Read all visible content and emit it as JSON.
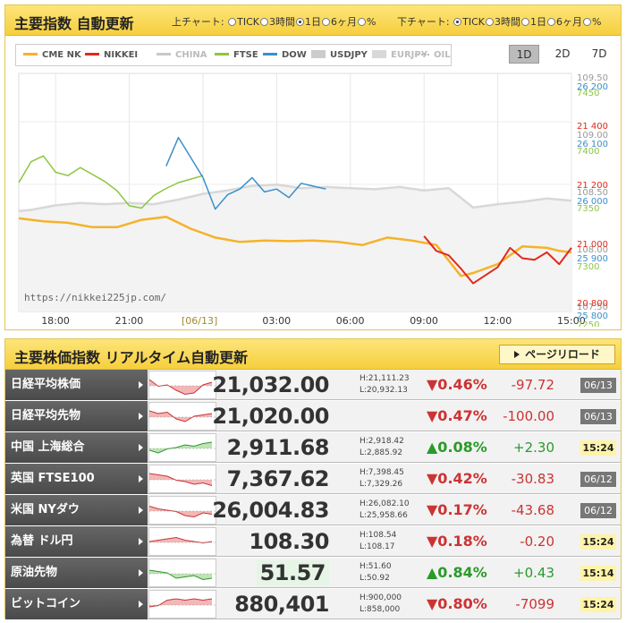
{
  "chart_panel": {
    "title": "主要指数 自動更新",
    "upper_chart": {
      "label": "上チャート:",
      "options": [
        "TICK",
        "3時間",
        "1日",
        "6ヶ月",
        "%"
      ],
      "selected": "1日"
    },
    "lower_chart": {
      "label": "下チャート:",
      "options": [
        "TICK",
        "3時間",
        "1日",
        "6ヶ月",
        "%"
      ],
      "selected": "TICK"
    },
    "legend": [
      {
        "name": "CME NK",
        "color": "#f5b22a",
        "style": "line"
      },
      {
        "name": "NIKKEI",
        "color": "#e02a1a",
        "style": "line"
      },
      {
        "name": "CHINA",
        "color": "#c8c8c8",
        "style": "line"
      },
      {
        "name": "FTSE",
        "color": "#8cc63f",
        "style": "line"
      },
      {
        "name": "DOW",
        "color": "#3a90c8",
        "style": "line"
      },
      {
        "name": "USDJPY",
        "color": "#cccccc",
        "style": "box"
      },
      {
        "name": "EURJPY",
        "color": "#d8d8d8",
        "style": "box"
      },
      {
        "name": "OIL",
        "color": "#bbbbbb",
        "style": "dotted"
      }
    ],
    "range_buttons": [
      "1D",
      "2D",
      "7D"
    ],
    "active_range": "1D",
    "watermark": "https://nikkei225jp.com/",
    "chart_data": {
      "type": "line",
      "x_ticks": [
        "18:00",
        "21:00",
        "[06/13]",
        "03:00",
        "06:00",
        "09:00",
        "12:00",
        "15:00"
      ],
      "y_axis_usdjpy": {
        "ticks": [
          "109.50",
          "109.00",
          "108.50",
          "108.00",
          "107.50"
        ],
        "color": "#999999"
      },
      "y_axis_dow": {
        "ticks": [
          "26 200",
          "26 100",
          "26 000",
          "25 900",
          "25 800"
        ],
        "color": "#3a90c8"
      },
      "y_axis_ftse": {
        "ticks": [
          "7450",
          "7400",
          "7350",
          "7300",
          "7250"
        ],
        "color": "#8cc63f"
      },
      "y_axis_nikkei": {
        "ticks": [
          "21 400",
          "21 200",
          "21 000",
          "20 800"
        ],
        "color": "#e02a1a"
      },
      "series": [
        {
          "name": "USDJPY",
          "color": "#d8d8d8",
          "x": [
            16.5,
            17,
            18,
            19,
            20,
            21,
            22,
            23,
            24,
            25,
            26,
            27,
            28,
            29,
            30,
            31,
            32,
            33,
            34,
            35,
            36,
            37,
            38,
            38.5,
            39
          ],
          "values": [
            108.33,
            108.34,
            108.38,
            108.4,
            108.39,
            108.4,
            108.39,
            108.43,
            108.48,
            108.51,
            108.55,
            108.56,
            108.53,
            108.54,
            108.53,
            108.52,
            108.54,
            108.51,
            108.53,
            108.36,
            108.39,
            108.41,
            108.44,
            108.43,
            108.42
          ]
        },
        {
          "name": "CME NK",
          "color": "#f5b22a",
          "x": [
            16.5,
            17.5,
            18.5,
            19.5,
            20.5,
            21.5,
            22.5,
            23.5,
            24.5,
            25.5,
            26.5,
            27.5,
            28.5,
            29.5,
            30.5,
            31.5,
            32.5,
            33.5,
            34.5,
            35,
            36,
            37,
            38,
            38.5,
            39
          ],
          "values": [
            21085,
            21075,
            21070,
            21055,
            21055,
            21080,
            21090,
            21050,
            21020,
            21005,
            21010,
            21008,
            21010,
            21005,
            20995,
            21020,
            21010,
            20995,
            20890,
            20900,
            20930,
            20990,
            20985,
            20975,
            20970
          ]
        },
        {
          "name": "FTSE",
          "color": "#8cc63f",
          "x": [
            16.5,
            17,
            17.5,
            18,
            18.5,
            19,
            19.5,
            20,
            20.5,
            21,
            21.5,
            22,
            22.5,
            23,
            23.5,
            24
          ],
          "values": [
            7372,
            7390,
            7395,
            7381,
            7378,
            7385,
            7379,
            7373,
            7365,
            7352,
            7350,
            7361,
            7367,
            7372,
            7375,
            7378
          ]
        },
        {
          "name": "DOW",
          "color": "#3a90c8",
          "x": [
            22.5,
            23,
            23.5,
            24,
            24.5,
            25,
            25.5,
            26,
            26.5,
            27,
            27.5,
            28,
            28.5,
            29
          ],
          "values": [
            26060,
            26110,
            26075,
            26040,
            25985,
            26010,
            26020,
            26040,
            26015,
            26020,
            26005,
            26030,
            26025,
            26020
          ]
        },
        {
          "name": "NIKKEI",
          "color": "#e02a1a",
          "x": [
            33,
            33.5,
            34,
            34.5,
            35,
            36,
            36.5,
            37,
            37.5,
            38,
            38.5,
            39
          ],
          "values": [
            21025,
            20975,
            20960,
            20915,
            20865,
            20920,
            20985,
            20950,
            20945,
            20970,
            20930,
            20985
          ]
        }
      ]
    }
  },
  "market_panel": {
    "title": "主要株価指数 リアルタイム自動更新",
    "reload_label": "ページリロード",
    "rows": [
      {
        "name": "日経平均株価",
        "price": "21,032.00",
        "high": "H:21,111.23",
        "low": "L:20,932.13",
        "pct": "▼0.46%",
        "change": "-97.72",
        "time": "06/13",
        "up": false,
        "open": false
      },
      {
        "name": "日経平均先物",
        "price": "21,020.00",
        "high": "",
        "low": "",
        "pct": "▼0.47%",
        "change": "-100.00",
        "time": "06/13",
        "up": false,
        "open": false
      },
      {
        "name": "中国 上海総合",
        "price": "2,911.68",
        "high": "H:2,918.42",
        "low": "L:2,885.92",
        "pct": "▲0.08%",
        "change": "+2.30",
        "time": "15:24",
        "up": true,
        "open": true
      },
      {
        "name": "英国 FTSE100",
        "price": "7,367.62",
        "high": "H:7,398.45",
        "low": "L:7,329.26",
        "pct": "▼0.42%",
        "change": "-30.83",
        "time": "06/12",
        "up": false,
        "open": false
      },
      {
        "name": "米国 NYダウ",
        "price": "26,004.83",
        "high": "H:26,082.10",
        "low": "L:25,958.66",
        "pct": "▼0.17%",
        "change": "-43.68",
        "time": "06/12",
        "up": false,
        "open": false
      },
      {
        "name": "為替 ドル円",
        "price": "108.30",
        "high": "H:108.54",
        "low": "L:108.17",
        "pct": "▼0.18%",
        "change": "-0.20",
        "time": "15:24",
        "up": false,
        "open": true
      },
      {
        "name": "原油先物",
        "price": "51.57",
        "high": "H:51.60",
        "low": "L:50.92",
        "pct": "▲0.84%",
        "change": "+0.43",
        "time": "15:14",
        "up": true,
        "open": true
      },
      {
        "name": "ビットコイン",
        "price": "880,401",
        "high": "H:900,000",
        "low": "L:858,000",
        "pct": "▼0.80%",
        "change": "-7099",
        "time": "15:24",
        "up": false,
        "open": true
      }
    ]
  }
}
